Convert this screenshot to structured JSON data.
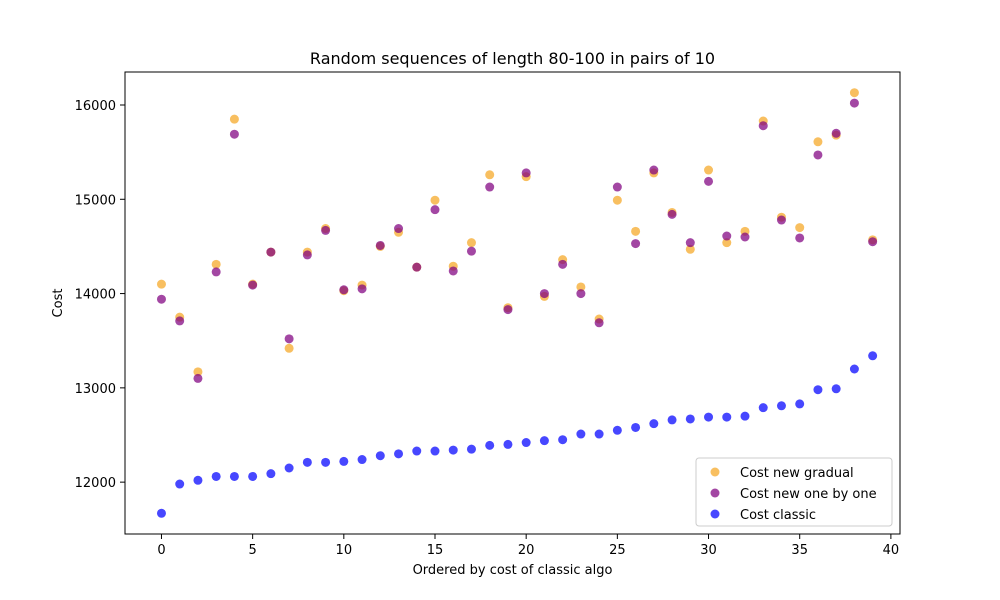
{
  "chart_data": {
    "type": "scatter",
    "title": "Random sequences of length 80-100 in pairs of 10",
    "xlabel": "Ordered by cost of classic algo",
    "ylabel": "Cost",
    "xlim": [
      -2,
      40.5
    ],
    "ylim": [
      11450,
      16350
    ],
    "xticks": [
      0,
      5,
      10,
      15,
      20,
      25,
      30,
      35,
      40
    ],
    "yticks": [
      12000,
      13000,
      14000,
      15000,
      16000
    ],
    "grid": false,
    "legend_position": "lower-right",
    "x": [
      0,
      1,
      2,
      3,
      4,
      5,
      6,
      7,
      8,
      9,
      10,
      11,
      12,
      13,
      14,
      15,
      16,
      17,
      18,
      19,
      20,
      21,
      22,
      23,
      24,
      25,
      26,
      27,
      28,
      29,
      30,
      31,
      32,
      33,
      34,
      35,
      36,
      37,
      38,
      39
    ],
    "series": [
      {
        "name": "Cost new gradual",
        "color": "#f5a623",
        "values": [
          14100,
          13750,
          13170,
          14310,
          15850,
          14100,
          14440,
          13420,
          14440,
          14690,
          14030,
          14090,
          14500,
          14650,
          14280,
          14990,
          14290,
          14540,
          15260,
          13850,
          15240,
          13970,
          14360,
          14070,
          13730,
          14990,
          14660,
          15280,
          14860,
          14470,
          15310,
          14540,
          14660,
          15830,
          14810,
          14700,
          15610,
          15680,
          16130,
          14570
        ]
      },
      {
        "name": "Cost new one by one",
        "color": "#800080",
        "values": [
          13940,
          13710,
          13100,
          14230,
          15690,
          14090,
          14440,
          13520,
          14410,
          14670,
          14040,
          14050,
          14510,
          14690,
          14280,
          14890,
          14240,
          14450,
          15130,
          13830,
          15280,
          14000,
          14310,
          14000,
          13690,
          15130,
          14530,
          15310,
          14840,
          14540,
          15190,
          14610,
          14600,
          15780,
          14780,
          14590,
          15470,
          15700,
          16020,
          14550
        ]
      },
      {
        "name": "Cost classic",
        "color": "#0000ff",
        "values": [
          11670,
          11980,
          12020,
          12060,
          12060,
          12060,
          12090,
          12150,
          12210,
          12210,
          12220,
          12240,
          12280,
          12300,
          12330,
          12330,
          12340,
          12350,
          12390,
          12400,
          12420,
          12440,
          12450,
          12510,
          12510,
          12550,
          12580,
          12620,
          12660,
          12670,
          12690,
          12690,
          12700,
          12790,
          12810,
          12830,
          12980,
          12990,
          13200,
          13340
        ]
      }
    ]
  }
}
